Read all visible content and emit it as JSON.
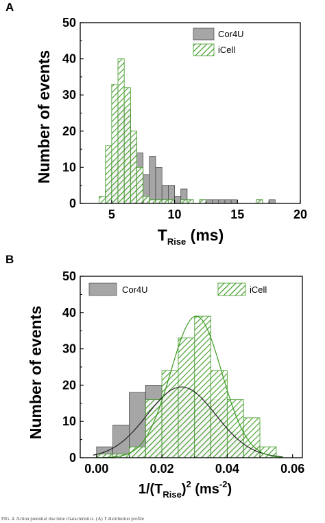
{
  "caption": "FIG. 4. Action potential rise time characteristics. (A) T   distribution profile",
  "chart_data": [
    {
      "type": "bar",
      "panel": "A",
      "xlabel_main": "T",
      "xlabel_sub": "Rise",
      "xlabel_unit": " (ms)",
      "ylabel": "Number of events",
      "xlim": [
        2.5,
        20
      ],
      "ylim": [
        0,
        50
      ],
      "xticks": [
        5,
        10,
        15,
        20
      ],
      "yticks": [
        0,
        10,
        20,
        30,
        40,
        50
      ],
      "bin_width": 0.5,
      "legend_position": "top-right",
      "series": [
        {
          "name": "Cor4U",
          "color": "#a6a6a6",
          "bins": [
            [
              4.5,
              4
            ],
            [
              5,
              12
            ],
            [
              5.5,
              27
            ],
            [
              6,
              26
            ],
            [
              6.5,
              17
            ],
            [
              7,
              14
            ],
            [
              7.5,
              8
            ],
            [
              8,
              13
            ],
            [
              8.5,
              10
            ],
            [
              9,
              5
            ],
            [
              9.5,
              5
            ],
            [
              10,
              2
            ],
            [
              10.5,
              4
            ],
            [
              11,
              1
            ],
            [
              12,
              1
            ],
            [
              12.5,
              1
            ],
            [
              13,
              1
            ],
            [
              13.5,
              1
            ],
            [
              14,
              1
            ],
            [
              14.5,
              1
            ],
            [
              16.5,
              1
            ],
            [
              17.5,
              1
            ]
          ]
        },
        {
          "name": "iCell",
          "color": "#3a9a20",
          "bins": [
            [
              4,
              2
            ],
            [
              4.5,
              16
            ],
            [
              5,
              33
            ],
            [
              5.5,
              40
            ],
            [
              6,
              32
            ],
            [
              6.5,
              20
            ],
            [
              7,
              10
            ],
            [
              7.5,
              2
            ],
            [
              8,
              1
            ],
            [
              8.5,
              1
            ],
            [
              9,
              1
            ],
            [
              9.5,
              1
            ],
            [
              10.5,
              1
            ],
            [
              11,
              1
            ],
            [
              12,
              1
            ],
            [
              16.5,
              1
            ]
          ]
        }
      ]
    },
    {
      "type": "bar",
      "panel": "B",
      "xlabel_pre": "1/(T",
      "xlabel_sub": "Rise",
      "xlabel_post": ")",
      "xlabel_sup": "2",
      "xlabel_unit_pre": " (ms",
      "xlabel_unit_sup": "-2",
      "xlabel_unit_post": ")",
      "ylabel": "Number of events",
      "xlim": [
        -0.005,
        0.063
      ],
      "ylim": [
        0,
        50
      ],
      "xticks": [
        0.0,
        0.02,
        0.04,
        0.06
      ],
      "xtick_labels": [
        "0.00",
        "0.02",
        "0.04",
        "0.06"
      ],
      "yticks": [
        0,
        10,
        20,
        30,
        40,
        50
      ],
      "bin_width": 0.005,
      "legend_position": "top",
      "series": [
        {
          "name": "Cor4U",
          "color": "#a6a6a6",
          "bins": [
            [
              0.0,
              3
            ],
            [
              0.005,
              9
            ],
            [
              0.01,
              18
            ],
            [
              0.015,
              20
            ],
            [
              0.02,
              18
            ],
            [
              0.025,
              19
            ],
            [
              0.03,
              16
            ],
            [
              0.035,
              16
            ],
            [
              0.04,
              7
            ],
            [
              0.045,
              3
            ]
          ],
          "fit": {
            "type": "gaussian",
            "amplitude": 19.5,
            "center": 0.026,
            "sigma": 0.0105
          }
        },
        {
          "name": "iCell",
          "color": "#3a9a20",
          "bins": [
            [
              0.0,
              1
            ],
            [
              0.005,
              1
            ],
            [
              0.01,
              3
            ],
            [
              0.015,
              16
            ],
            [
              0.02,
              24
            ],
            [
              0.025,
              33
            ],
            [
              0.03,
              39
            ],
            [
              0.035,
              24
            ],
            [
              0.04,
              16
            ],
            [
              0.045,
              11
            ],
            [
              0.05,
              3
            ]
          ],
          "fit": {
            "type": "gaussian",
            "amplitude": 39,
            "center": 0.0305,
            "sigma": 0.0078
          }
        }
      ]
    }
  ]
}
